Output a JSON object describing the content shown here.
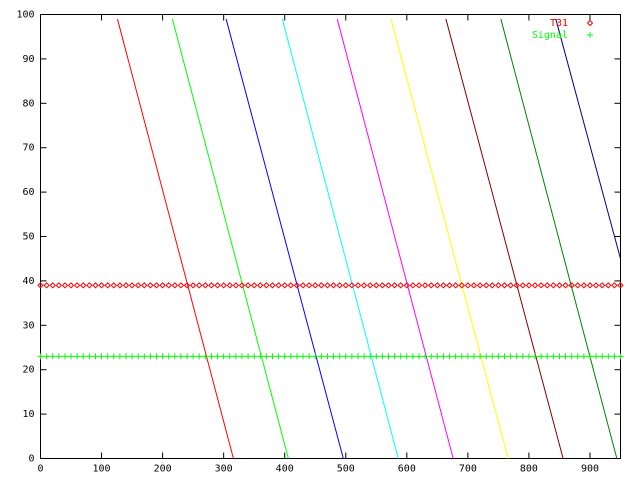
{
  "chart_data": {
    "type": "scatter",
    "xlim": [
      0,
      950
    ],
    "ylim": [
      0,
      100
    ],
    "xticks": [
      0,
      100,
      200,
      300,
      400,
      500,
      600,
      700,
      800,
      900
    ],
    "yticks": [
      0,
      10,
      20,
      30,
      40,
      50,
      60,
      70,
      80,
      90,
      100
    ],
    "x": [
      0,
      10,
      20,
      30,
      40,
      50,
      60,
      70,
      80,
      90,
      100,
      110,
      120,
      130,
      140,
      150,
      160,
      170,
      180,
      190,
      200,
      210,
      220,
      230,
      240,
      250,
      260,
      270,
      280,
      290,
      300,
      310,
      320,
      330,
      340,
      350,
      360,
      370,
      380,
      390,
      400,
      410,
      420,
      430,
      440,
      450,
      460,
      470,
      480,
      490,
      500,
      510,
      520,
      530,
      540,
      550,
      560,
      570,
      580,
      590,
      600,
      610,
      620,
      630,
      640,
      650,
      660,
      670,
      680,
      690,
      700,
      710,
      720,
      730,
      740,
      750,
      760,
      770,
      780,
      790,
      800,
      810,
      820,
      830,
      840,
      850,
      860,
      870,
      880,
      890,
      900,
      910,
      920,
      930,
      940,
      950
    ],
    "series": [
      {
        "name": "T31",
        "color": "#ff0000",
        "marker": "diamond",
        "values": [
          39,
          39,
          39,
          39,
          39,
          39,
          39,
          39,
          39,
          39,
          39,
          39,
          39,
          39,
          39,
          39,
          39,
          39,
          39,
          39,
          39,
          39,
          39,
          39,
          39,
          39,
          39,
          39,
          39,
          39,
          39,
          39,
          39,
          39,
          39,
          39,
          39,
          39,
          39,
          39,
          39,
          39,
          39,
          39,
          39,
          39,
          39,
          39,
          39,
          39,
          39,
          39,
          39,
          39,
          39,
          39,
          39,
          39,
          39,
          39,
          39,
          39,
          39,
          39,
          39,
          39,
          39,
          39,
          39,
          39,
          39,
          39,
          39,
          39,
          39,
          39,
          39,
          39,
          39,
          39,
          39,
          39,
          39,
          39,
          39,
          39,
          39,
          39,
          39,
          39,
          39,
          39,
          39,
          39,
          39,
          39
        ]
      },
      {
        "name": "Signal",
        "color": "#00ff00",
        "marker": "plus",
        "values": [
          23,
          23,
          23,
          23,
          23,
          23,
          23,
          23,
          23,
          23,
          23,
          23,
          23,
          23,
          23,
          23,
          23,
          23,
          23,
          23,
          23,
          23,
          23,
          23,
          23,
          23,
          23,
          23,
          23,
          23,
          23,
          23,
          23,
          23,
          23,
          23,
          23,
          23,
          23,
          23,
          23,
          23,
          23,
          23,
          23,
          23,
          23,
          23,
          23,
          23,
          23,
          23,
          23,
          23,
          23,
          23,
          23,
          23,
          23,
          23,
          23,
          23,
          23,
          23,
          23,
          23,
          23,
          23,
          23,
          23,
          23,
          23,
          23,
          23,
          23,
          23,
          23,
          23,
          23,
          23,
          23,
          23,
          23,
          23,
          23,
          23,
          23,
          23,
          23,
          23,
          23,
          23,
          23,
          23,
          23,
          23
        ]
      }
    ],
    "lines": [
      {
        "color": "#ff0000",
        "x": [
          126,
          316
        ],
        "y": [
          99,
          0
        ]
      },
      {
        "color": "#00ff00",
        "x": [
          216,
          406
        ],
        "y": [
          99,
          0
        ]
      },
      {
        "color": "#0000ff",
        "x": [
          304,
          496
        ],
        "y": [
          99,
          0
        ]
      },
      {
        "color": "#00ffff",
        "x": [
          396,
          586
        ],
        "y": [
          99,
          0
        ]
      },
      {
        "color": "#ff00ff",
        "x": [
          486,
          676
        ],
        "y": [
          99,
          0
        ]
      },
      {
        "color": "#ffff00",
        "x": [
          574,
          766
        ],
        "y": [
          99,
          0
        ]
      },
      {
        "color": "#800000",
        "x": [
          664,
          856
        ],
        "y": [
          99,
          0
        ]
      },
      {
        "color": "#008000",
        "x": [
          754,
          944
        ],
        "y": [
          99,
          0
        ]
      },
      {
        "color": "#000080",
        "x": [
          844,
          950
        ],
        "y": [
          99,
          45
        ]
      }
    ]
  }
}
